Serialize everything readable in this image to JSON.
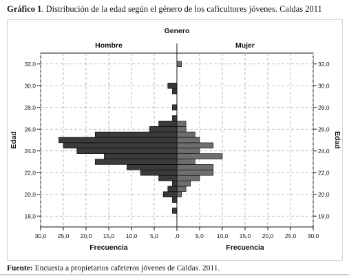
{
  "caption": {
    "label": "Gráfico 1",
    "text": ". Distribución de la edad según el género de los caficultores jóvenes. Caldas 2011"
  },
  "source": {
    "label": "Fuente:",
    "text": " Encuesta a propietarios cafeteros jóvenes de Caldas. 2011."
  },
  "chart_data": {
    "type": "bar",
    "orientation": "horizontal-back-to-back",
    "title": "Genero",
    "panels": [
      "Hombre",
      "Mujer"
    ],
    "xlabel": "Frecuencia",
    "ylabel": "Edad",
    "y_ticks": [
      "18,0",
      "20,0",
      "22,0",
      "24,0",
      "26,0",
      "28,0",
      "30,0",
      "32,0"
    ],
    "ylim": [
      17,
      33
    ],
    "x_ticks_left": [
      "30,0",
      "25,0",
      "20,0",
      "15,0",
      "10,0",
      "5,0",
      ",0"
    ],
    "x_ticks_right": [
      ",0",
      "5,0",
      "10,0",
      "15,0",
      "20,0",
      "25,0",
      "30,0"
    ],
    "xlim": [
      0,
      30
    ],
    "grid": true,
    "bin_width": 0.5,
    "series": [
      {
        "name": "Hombre",
        "color": "#3a3a3a",
        "bins": [
          18.5,
          19.5,
          20.0,
          20.5,
          21.0,
          21.5,
          22.0,
          22.5,
          23.0,
          23.5,
          24.0,
          24.5,
          25.0,
          25.5,
          26.0,
          26.5,
          27.0,
          27.5,
          28.0,
          29.5,
          30.0
        ],
        "values": [
          1,
          1,
          3,
          2,
          1,
          4,
          8,
          11,
          18,
          16,
          22,
          25,
          26,
          18,
          6,
          4,
          1,
          0,
          1,
          1,
          2
        ]
      },
      {
        "name": "Mujer",
        "color": "#6e6e6e",
        "bins": [
          20.0,
          20.5,
          21.0,
          21.5,
          22.0,
          22.5,
          23.0,
          23.5,
          24.0,
          24.5,
          25.0,
          25.5,
          26.0,
          26.5,
          32.0
        ],
        "values": [
          1,
          2,
          3,
          5,
          8,
          8,
          4,
          10,
          5,
          8,
          5,
          4,
          2,
          2,
          1
        ]
      }
    ]
  }
}
